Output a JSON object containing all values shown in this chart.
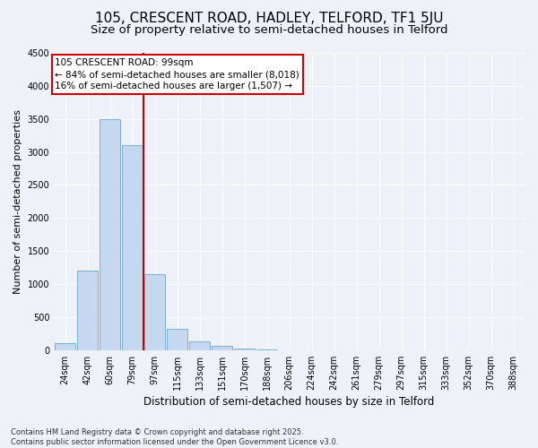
{
  "title": "105, CRESCENT ROAD, HADLEY, TELFORD, TF1 5JU",
  "subtitle": "Size of property relative to semi-detached houses in Telford",
  "xlabel": "Distribution of semi-detached houses by size in Telford",
  "ylabel": "Number of semi-detached properties",
  "categories": [
    "24sqm",
    "42sqm",
    "60sqm",
    "79sqm",
    "97sqm",
    "115sqm",
    "133sqm",
    "151sqm",
    "170sqm",
    "188sqm",
    "206sqm",
    "224sqm",
    "242sqm",
    "261sqm",
    "279sqm",
    "297sqm",
    "315sqm",
    "333sqm",
    "352sqm",
    "370sqm",
    "388sqm"
  ],
  "values": [
    100,
    1200,
    3500,
    3100,
    1150,
    320,
    130,
    70,
    30,
    5,
    0,
    0,
    0,
    0,
    0,
    0,
    0,
    0,
    0,
    0,
    0
  ],
  "bar_color": "#c5d8f0",
  "bar_edge_color": "#7aafd4",
  "vline_x_idx": 3.5,
  "vline_color": "#cc0000",
  "annotation_line1": "105 CRESCENT ROAD: 99sqm",
  "annotation_line2": "← 84% of semi-detached houses are smaller (8,018)",
  "annotation_line3": "16% of semi-detached houses are larger (1,507) →",
  "annotation_box_color": "#cc0000",
  "ylim": [
    0,
    4500
  ],
  "yticks": [
    0,
    500,
    1000,
    1500,
    2000,
    2500,
    3000,
    3500,
    4000,
    4500
  ],
  "background_color": "#eef2f8",
  "grid_color": "#ffffff",
  "footer": "Contains HM Land Registry data © Crown copyright and database right 2025.\nContains public sector information licensed under the Open Government Licence v3.0.",
  "title_fontsize": 11,
  "subtitle_fontsize": 9.5,
  "xlabel_fontsize": 8.5,
  "ylabel_fontsize": 8,
  "tick_fontsize": 7,
  "annotation_fontsize": 7.5,
  "footer_fontsize": 6
}
